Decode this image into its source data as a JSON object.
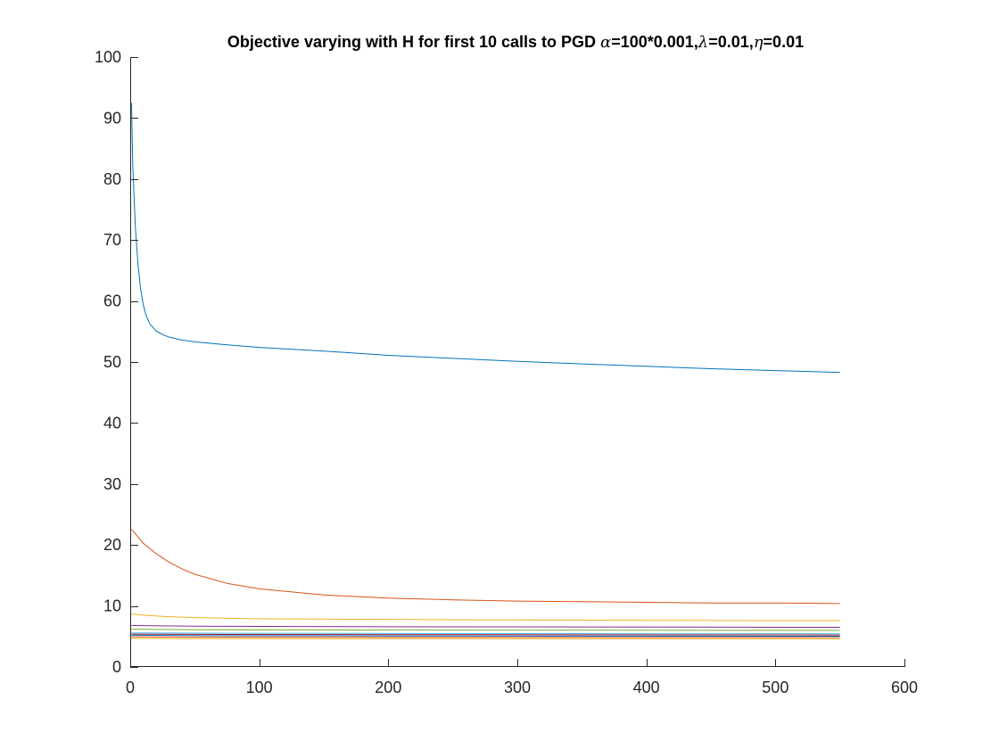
{
  "chart_data": {
    "type": "line",
    "title": {
      "prefix": "Objective varying with H for first 10 calls to PGD ",
      "alpha_symbol": "α",
      "alpha_value": "=100*0.001,",
      "lambda_symbol": "λ",
      "lambda_value": "=0.01,",
      "eta_symbol": "η",
      "eta_value": "=0.01"
    },
    "xlabel": "",
    "ylabel": "",
    "xlim": [
      0,
      600
    ],
    "ylim": [
      0,
      100
    ],
    "x_ticks": [
      0,
      100,
      200,
      300,
      400,
      500,
      600
    ],
    "y_ticks": [
      0,
      10,
      20,
      30,
      40,
      50,
      60,
      70,
      80,
      90,
      100
    ],
    "x_tick_labels": [
      "0",
      "100",
      "200",
      "300",
      "400",
      "500",
      "600"
    ],
    "y_tick_labels": [
      "0",
      "10",
      "20",
      "30",
      "40",
      "50",
      "60",
      "70",
      "80",
      "90",
      "100"
    ],
    "grid": false,
    "legend": "none",
    "series": [
      {
        "color": "#0072BD",
        "x": [
          1,
          2,
          4,
          6,
          8,
          10,
          12,
          15,
          20,
          25,
          30,
          40,
          50,
          75,
          100,
          150,
          200,
          250,
          300,
          350,
          400,
          450,
          500,
          550
        ],
        "y": [
          92.5,
          82,
          72,
          66,
          62,
          59.5,
          57.8,
          56.3,
          55.1,
          54.5,
          54.1,
          53.6,
          53.3,
          52.8,
          52.4,
          51.8,
          51.1,
          50.6,
          50.1,
          49.7,
          49.3,
          48.9,
          48.6,
          48.3
        ]
      },
      {
        "color": "#D95319",
        "x": [
          1,
          10,
          20,
          30,
          40,
          50,
          75,
          100,
          150,
          200,
          250,
          300,
          350,
          400,
          450,
          500,
          550
        ],
        "y": [
          22.6,
          20.3,
          18.6,
          17.2,
          16.1,
          15.2,
          13.7,
          12.8,
          11.8,
          11.3,
          11.0,
          10.8,
          10.7,
          10.6,
          10.5,
          10.5,
          10.4
        ]
      },
      {
        "color": "#EDB120",
        "x": [
          1,
          10,
          25,
          50,
          100,
          200,
          300,
          400,
          500,
          550
        ],
        "y": [
          8.7,
          8.5,
          8.3,
          8.1,
          7.9,
          7.8,
          7.7,
          7.65,
          7.6,
          7.6
        ]
      },
      {
        "color": "#7E2F8E",
        "x": [
          1,
          50,
          200,
          550
        ],
        "y": [
          6.8,
          6.7,
          6.6,
          6.5
        ]
      },
      {
        "color": "#77AC30",
        "x": [
          1,
          50,
          200,
          550
        ],
        "y": [
          6.2,
          6.1,
          6.05,
          6.0
        ]
      },
      {
        "color": "#4DBEEE",
        "x": [
          1,
          50,
          200,
          550
        ],
        "y": [
          5.6,
          5.55,
          5.5,
          5.45
        ]
      },
      {
        "color": "#A2142F",
        "x": [
          1,
          50,
          200,
          550
        ],
        "y": [
          5.4,
          5.35,
          5.3,
          5.25
        ]
      },
      {
        "color": "#0072BD",
        "x": [
          1,
          50,
          200,
          550
        ],
        "y": [
          5.2,
          5.15,
          5.1,
          5.05
        ]
      },
      {
        "color": "#D95319",
        "x": [
          1,
          50,
          200,
          550
        ],
        "y": [
          4.95,
          4.9,
          4.88,
          4.85
        ]
      },
      {
        "color": "#EDB120",
        "x": [
          1,
          50,
          200,
          550
        ],
        "y": [
          4.7,
          4.65,
          4.62,
          4.6
        ]
      }
    ]
  }
}
